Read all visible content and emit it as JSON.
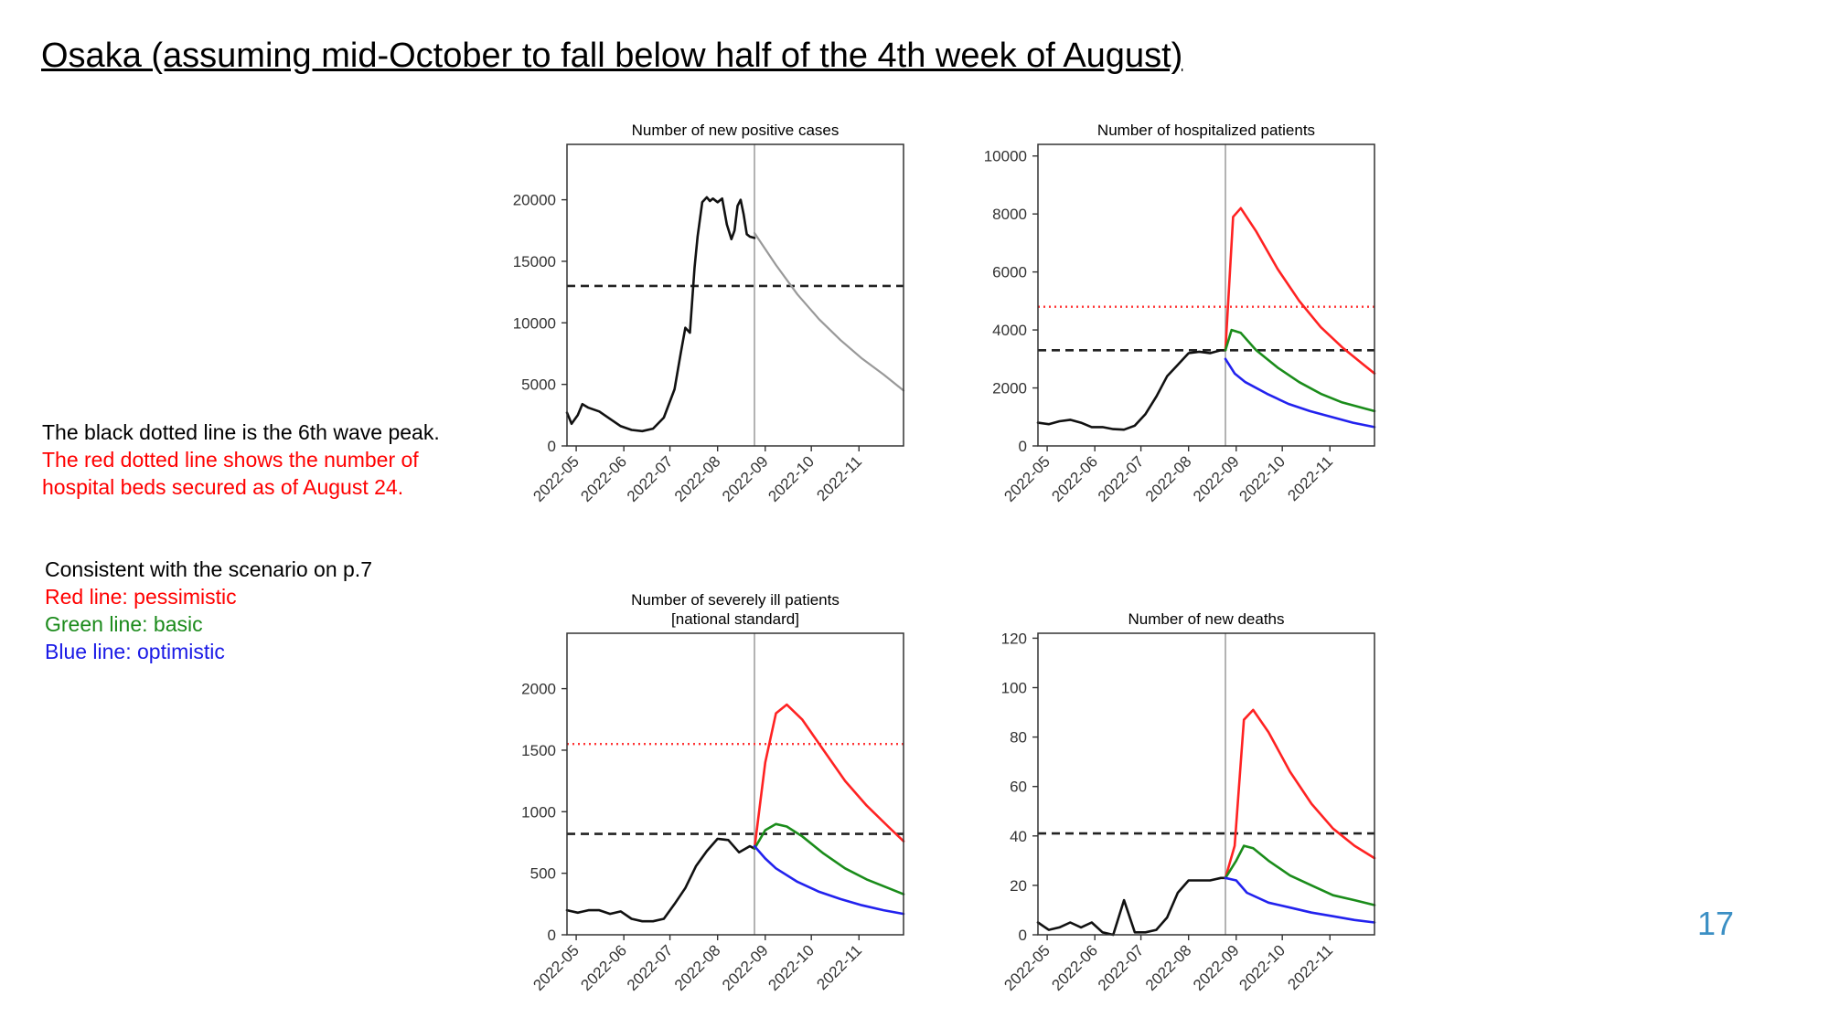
{
  "title": "Osaka (assuming mid-October to fall below half of the 4th week of August)",
  "notes": {
    "black_line": "The black dotted line is the 6th wave peak.",
    "red_line_1": "The red dotted line shows the number of",
    "red_line_2": "hospital beds secured as of August 24.",
    "scenario_intro": "Consistent with the scenario on p.7",
    "red_scenario": "Red line: pessimistic",
    "green_scenario": "Green line: basic",
    "blue_scenario": "Blue line: optimistic"
  },
  "page_number": "17",
  "colors": {
    "observed": "#111111",
    "projection_gray": "#999999",
    "pessimistic": "#ff2222",
    "basic": "#1a8c1a",
    "optimistic": "#2222ee",
    "peak_line": "#222222",
    "beds_line": "#ff3333",
    "red_text": "#ff0000",
    "green_text": "#1a8a1a",
    "blue_text": "#1a1ae6",
    "page_number": "#3b8fc4"
  },
  "chart_data": [
    {
      "id": "cases",
      "type": "line",
      "title": [
        "Number of new positive cases"
      ],
      "x_ticks": [
        "2022-05",
        "2022-06",
        "2022-07",
        "2022-08",
        "2022-09",
        "2022-10",
        "2022-11"
      ],
      "xlim": [
        "2022-04-25",
        "2022-11-30"
      ],
      "ylim": [
        0,
        24500
      ],
      "y_ticks": [
        0,
        5000,
        10000,
        15000,
        20000
      ],
      "vline": "2022-08-25",
      "hlines": [
        {
          "kind": "peak",
          "y": 13000
        }
      ],
      "series": [
        {
          "kind": "observed",
          "x": [
            "2022-04-25",
            "2022-04-28",
            "2022-05-02",
            "2022-05-05",
            "2022-05-09",
            "2022-05-16",
            "2022-05-23",
            "2022-05-30",
            "2022-06-06",
            "2022-06-13",
            "2022-06-20",
            "2022-06-27",
            "2022-07-04",
            "2022-07-08",
            "2022-07-11",
            "2022-07-14",
            "2022-07-17",
            "2022-07-19",
            "2022-07-22",
            "2022-07-25",
            "2022-07-27",
            "2022-07-29",
            "2022-08-01",
            "2022-08-04",
            "2022-08-07",
            "2022-08-10",
            "2022-08-12",
            "2022-08-14",
            "2022-08-16",
            "2022-08-18",
            "2022-08-20",
            "2022-08-22",
            "2022-08-25"
          ],
          "y": [
            2700,
            1800,
            2500,
            3400,
            3100,
            2800,
            2200,
            1600,
            1300,
            1200,
            1400,
            2300,
            4600,
            7500,
            9600,
            9200,
            14500,
            17000,
            19800,
            20200,
            19900,
            20100,
            19800,
            20100,
            18000,
            16800,
            17500,
            19500,
            20000,
            18800,
            17200,
            17000,
            16900
          ]
        },
        {
          "kind": "projection",
          "x": [
            "2022-08-25",
            "2022-09-08",
            "2022-09-22",
            "2022-10-06",
            "2022-10-20",
            "2022-11-03",
            "2022-11-17",
            "2022-11-30"
          ],
          "y": [
            17300,
            14700,
            12300,
            10300,
            8600,
            7100,
            5800,
            4500
          ]
        }
      ]
    },
    {
      "id": "hospitalized",
      "type": "line",
      "title": [
        "Number of hospitalized patients"
      ],
      "x_ticks": [
        "2022-05",
        "2022-06",
        "2022-07",
        "2022-08",
        "2022-09",
        "2022-10",
        "2022-11"
      ],
      "xlim": [
        "2022-04-25",
        "2022-11-30"
      ],
      "ylim": [
        0,
        10400
      ],
      "y_ticks": [
        0,
        2000,
        4000,
        6000,
        8000,
        10000
      ],
      "vline": "2022-08-25",
      "hlines": [
        {
          "kind": "peak",
          "y": 3300
        },
        {
          "kind": "beds",
          "y": 4800
        }
      ],
      "series": [
        {
          "kind": "observed",
          "x": [
            "2022-04-25",
            "2022-05-02",
            "2022-05-09",
            "2022-05-16",
            "2022-05-23",
            "2022-05-30",
            "2022-06-06",
            "2022-06-13",
            "2022-06-20",
            "2022-06-27",
            "2022-07-04",
            "2022-07-11",
            "2022-07-18",
            "2022-07-25",
            "2022-08-01",
            "2022-08-08",
            "2022-08-15",
            "2022-08-22",
            "2022-08-25"
          ],
          "y": [
            800,
            750,
            850,
            900,
            800,
            650,
            650,
            580,
            560,
            700,
            1100,
            1700,
            2400,
            2800,
            3200,
            3250,
            3200,
            3300,
            3300
          ]
        },
        {
          "kind": "pessimistic",
          "x": [
            "2022-08-25",
            "2022-08-30",
            "2022-09-04",
            "2022-09-14",
            "2022-09-28",
            "2022-10-12",
            "2022-10-26",
            "2022-11-09",
            "2022-11-23",
            "2022-11-30"
          ],
          "y": [
            3300,
            7900,
            8200,
            7400,
            6100,
            5000,
            4100,
            3400,
            2800,
            2500
          ]
        },
        {
          "kind": "basic",
          "x": [
            "2022-08-25",
            "2022-08-29",
            "2022-09-04",
            "2022-09-14",
            "2022-09-28",
            "2022-10-12",
            "2022-10-26",
            "2022-11-09",
            "2022-11-23",
            "2022-11-30"
          ],
          "y": [
            3300,
            4000,
            3900,
            3300,
            2700,
            2200,
            1800,
            1500,
            1300,
            1200
          ]
        },
        {
          "kind": "optimistic",
          "x": [
            "2022-08-25",
            "2022-08-31",
            "2022-09-07",
            "2022-09-21",
            "2022-10-05",
            "2022-10-19",
            "2022-11-02",
            "2022-11-16",
            "2022-11-30"
          ],
          "y": [
            3000,
            2500,
            2200,
            1800,
            1450,
            1200,
            1000,
            800,
            650
          ]
        }
      ]
    },
    {
      "id": "severe",
      "type": "line",
      "title": [
        "Number of severely ill patients",
        "[national standard]"
      ],
      "x_ticks": [
        "2022-05",
        "2022-06",
        "2022-07",
        "2022-08",
        "2022-09",
        "2022-10",
        "2022-11"
      ],
      "xlim": [
        "2022-04-25",
        "2022-11-30"
      ],
      "ylim": [
        0,
        2450
      ],
      "y_ticks": [
        0,
        500,
        1000,
        1500,
        2000
      ],
      "vline": "2022-08-25",
      "hlines": [
        {
          "kind": "peak",
          "y": 820
        },
        {
          "kind": "beds",
          "y": 1550
        }
      ],
      "series": [
        {
          "kind": "observed",
          "x": [
            "2022-04-25",
            "2022-05-02",
            "2022-05-09",
            "2022-05-16",
            "2022-05-23",
            "2022-05-30",
            "2022-06-06",
            "2022-06-13",
            "2022-06-20",
            "2022-06-27",
            "2022-07-04",
            "2022-07-11",
            "2022-07-18",
            "2022-07-25",
            "2022-08-01",
            "2022-08-08",
            "2022-08-15",
            "2022-08-22",
            "2022-08-25"
          ],
          "y": [
            200,
            180,
            200,
            200,
            170,
            190,
            130,
            110,
            110,
            130,
            250,
            380,
            560,
            680,
            780,
            770,
            670,
            720,
            700
          ]
        },
        {
          "kind": "pessimistic",
          "x": [
            "2022-08-25",
            "2022-09-01",
            "2022-09-08",
            "2022-09-15",
            "2022-09-25",
            "2022-10-09",
            "2022-10-23",
            "2022-11-06",
            "2022-11-20",
            "2022-11-30"
          ],
          "y": [
            700,
            1400,
            1800,
            1870,
            1750,
            1500,
            1250,
            1050,
            880,
            760
          ]
        },
        {
          "kind": "basic",
          "x": [
            "2022-08-25",
            "2022-09-01",
            "2022-09-08",
            "2022-09-15",
            "2022-09-25",
            "2022-10-09",
            "2022-10-23",
            "2022-11-06",
            "2022-11-20",
            "2022-11-30"
          ],
          "y": [
            700,
            850,
            900,
            880,
            800,
            660,
            540,
            450,
            380,
            330
          ]
        },
        {
          "kind": "optimistic",
          "x": [
            "2022-08-25",
            "2022-09-01",
            "2022-09-08",
            "2022-09-22",
            "2022-10-06",
            "2022-10-20",
            "2022-11-03",
            "2022-11-17",
            "2022-11-30"
          ],
          "y": [
            720,
            620,
            540,
            430,
            350,
            290,
            240,
            200,
            170
          ]
        }
      ]
    },
    {
      "id": "deaths",
      "type": "line",
      "title": [
        "Number of new deaths"
      ],
      "x_ticks": [
        "2022-05",
        "2022-06",
        "2022-07",
        "2022-08",
        "2022-09",
        "2022-10",
        "2022-11"
      ],
      "xlim": [
        "2022-04-25",
        "2022-11-30"
      ],
      "ylim": [
        0,
        122
      ],
      "y_ticks": [
        0,
        20,
        40,
        60,
        80,
        100,
        120
      ],
      "vline": "2022-08-25",
      "hlines": [
        {
          "kind": "peak",
          "y": 41
        }
      ],
      "series": [
        {
          "kind": "observed",
          "x": [
            "2022-04-25",
            "2022-05-02",
            "2022-05-09",
            "2022-05-16",
            "2022-05-23",
            "2022-05-30",
            "2022-06-06",
            "2022-06-13",
            "2022-06-20",
            "2022-06-27",
            "2022-07-04",
            "2022-07-11",
            "2022-07-18",
            "2022-07-25",
            "2022-08-01",
            "2022-08-08",
            "2022-08-15",
            "2022-08-22",
            "2022-08-25"
          ],
          "y": [
            5,
            2,
            3,
            5,
            3,
            5,
            1,
            0,
            14,
            1,
            1,
            2,
            7,
            17,
            22,
            22,
            22,
            23,
            23
          ]
        },
        {
          "kind": "pessimistic",
          "x": [
            "2022-08-25",
            "2022-08-31",
            "2022-09-06",
            "2022-09-12",
            "2022-09-22",
            "2022-10-06",
            "2022-10-20",
            "2022-11-03",
            "2022-11-17",
            "2022-11-30"
          ],
          "y": [
            23,
            36,
            87,
            91,
            82,
            66,
            53,
            43,
            36,
            31
          ]
        },
        {
          "kind": "basic",
          "x": [
            "2022-08-25",
            "2022-09-01",
            "2022-09-06",
            "2022-09-12",
            "2022-09-22",
            "2022-10-06",
            "2022-10-20",
            "2022-11-03",
            "2022-11-17",
            "2022-11-30"
          ],
          "y": [
            23,
            30,
            36,
            35,
            30,
            24,
            20,
            16,
            14,
            12
          ]
        },
        {
          "kind": "optimistic",
          "x": [
            "2022-08-25",
            "2022-09-01",
            "2022-09-08",
            "2022-09-22",
            "2022-10-06",
            "2022-10-20",
            "2022-11-03",
            "2022-11-17",
            "2022-11-30"
          ],
          "y": [
            23,
            22,
            17,
            13,
            11,
            9,
            7.5,
            6,
            5
          ]
        }
      ]
    }
  ]
}
